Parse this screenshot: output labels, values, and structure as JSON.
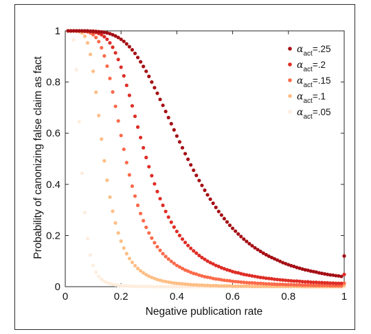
{
  "chart_data": {
    "type": "scatter",
    "title": "",
    "xlabel": "Negative publication rate",
    "ylabel": "Probability of canonizing false claim as fact",
    "xlim": [
      0,
      1
    ],
    "ylim": [
      0,
      1
    ],
    "xticks": [
      "0",
      "0.2",
      "0.4",
      "0.6",
      "0.8",
      "1"
    ],
    "yticks": [
      "0",
      "0.2",
      "0.4",
      "0.6",
      "0.8",
      "1"
    ],
    "legend_position": "top-right",
    "grid": false,
    "x": [
      0.01,
      0.02,
      0.03,
      0.04,
      0.05,
      0.06,
      0.07,
      0.08,
      0.09,
      0.1,
      0.11,
      0.12,
      0.13,
      0.14,
      0.15,
      0.16,
      0.17,
      0.18,
      0.19,
      0.2,
      0.21,
      0.22,
      0.23,
      0.24,
      0.25,
      0.26,
      0.27,
      0.28,
      0.29,
      0.3,
      0.31,
      0.32,
      0.33,
      0.34,
      0.35,
      0.36,
      0.37,
      0.38,
      0.39,
      0.4,
      0.41,
      0.42,
      0.43,
      0.44,
      0.45,
      0.46,
      0.47,
      0.48,
      0.49,
      0.5,
      0.51,
      0.52,
      0.53,
      0.54,
      0.55,
      0.56,
      0.57,
      0.58,
      0.59,
      0.6,
      0.61,
      0.62,
      0.63,
      0.64,
      0.65,
      0.66,
      0.67,
      0.68,
      0.69,
      0.7,
      0.71,
      0.72,
      0.73,
      0.74,
      0.75,
      0.76,
      0.77,
      0.78,
      0.79,
      0.8,
      0.81,
      0.82,
      0.83,
      0.84,
      0.85,
      0.86,
      0.87,
      0.88,
      0.89,
      0.9,
      0.91,
      0.92,
      0.93,
      0.94,
      0.95,
      0.96,
      0.97,
      0.98,
      0.99,
      1.0
    ],
    "series": [
      {
        "label_main": "α",
        "label_sub": "act",
        "label_value": "=.25",
        "color": "#a50f15",
        "values": [
          1.0,
          1.0,
          1.0,
          1.0,
          1.0,
          1.0,
          1.0,
          1.0,
          0.999,
          0.999,
          0.998,
          0.997,
          0.996,
          0.994,
          0.992,
          0.989,
          0.985,
          0.98,
          0.974,
          0.967,
          0.959,
          0.949,
          0.938,
          0.926,
          0.912,
          0.896,
          0.879,
          0.861,
          0.842,
          0.822,
          0.8,
          0.778,
          0.756,
          0.732,
          0.709,
          0.685,
          0.661,
          0.637,
          0.613,
          0.589,
          0.566,
          0.543,
          0.52,
          0.498,
          0.476,
          0.455,
          0.435,
          0.415,
          0.396,
          0.377,
          0.359,
          0.342,
          0.326,
          0.31,
          0.294,
          0.28,
          0.266,
          0.253,
          0.24,
          0.228,
          0.217,
          0.206,
          0.196,
          0.186,
          0.177,
          0.168,
          0.16,
          0.152,
          0.145,
          0.138,
          0.131,
          0.125,
          0.119,
          0.114,
          0.109,
          0.104,
          0.099,
          0.094,
          0.09,
          0.086,
          0.082,
          0.079,
          0.075,
          0.072,
          0.069,
          0.066,
          0.064,
          0.061,
          0.059,
          0.057,
          0.054,
          0.052,
          0.05,
          0.048,
          0.046,
          0.045,
          0.043,
          0.042,
          0.04,
          0.12
        ]
      },
      {
        "label_main": "α",
        "label_sub": "act",
        "label_value": "=.2",
        "color": "#de2d26",
        "values": [
          1.0,
          1.0,
          1.0,
          1.0,
          1.0,
          1.0,
          0.999,
          0.999,
          0.998,
          0.996,
          0.994,
          0.99,
          0.985,
          0.977,
          0.967,
          0.953,
          0.936,
          0.914,
          0.888,
          0.858,
          0.824,
          0.787,
          0.748,
          0.707,
          0.666,
          0.624,
          0.583,
          0.543,
          0.505,
          0.469,
          0.434,
          0.402,
          0.372,
          0.344,
          0.318,
          0.294,
          0.272,
          0.252,
          0.233,
          0.216,
          0.2,
          0.186,
          0.173,
          0.161,
          0.15,
          0.14,
          0.131,
          0.122,
          0.114,
          0.107,
          0.1,
          0.094,
          0.089,
          0.083,
          0.079,
          0.074,
          0.07,
          0.066,
          0.063,
          0.059,
          0.056,
          0.054,
          0.051,
          0.048,
          0.046,
          0.044,
          0.042,
          0.04,
          0.038,
          0.036,
          0.035,
          0.033,
          0.032,
          0.031,
          0.029,
          0.028,
          0.027,
          0.026,
          0.025,
          0.024,
          0.023,
          0.022,
          0.022,
          0.021,
          0.02,
          0.019,
          0.019,
          0.018,
          0.017,
          0.017,
          0.016,
          0.016,
          0.015,
          0.015,
          0.014,
          0.014,
          0.013,
          0.013,
          0.013,
          0.048
        ]
      },
      {
        "label_main": "α",
        "label_sub": "act",
        "label_value": "=.15",
        "color": "#fb6a4a",
        "values": [
          1.0,
          1.0,
          1.0,
          1.0,
          1.0,
          0.999,
          0.998,
          0.996,
          0.992,
          0.985,
          0.974,
          0.958,
          0.934,
          0.902,
          0.862,
          0.814,
          0.761,
          0.705,
          0.648,
          0.591,
          0.537,
          0.485,
          0.437,
          0.393,
          0.354,
          0.318,
          0.286,
          0.258,
          0.232,
          0.21,
          0.19,
          0.172,
          0.156,
          0.142,
          0.129,
          0.118,
          0.108,
          0.099,
          0.091,
          0.083,
          0.077,
          0.071,
          0.065,
          0.061,
          0.056,
          0.052,
          0.049,
          0.045,
          0.042,
          0.039,
          0.037,
          0.035,
          0.032,
          0.03,
          0.029,
          0.027,
          0.025,
          0.024,
          0.023,
          0.021,
          0.02,
          0.019,
          0.018,
          0.017,
          0.016,
          0.015,
          0.015,
          0.014,
          0.013,
          0.013,
          0.012,
          0.011,
          0.011,
          0.01,
          0.01,
          0.009,
          0.009,
          0.009,
          0.008,
          0.008,
          0.008,
          0.007,
          0.007,
          0.007,
          0.006,
          0.006,
          0.006,
          0.006,
          0.005,
          0.005,
          0.005,
          0.005,
          0.005,
          0.005,
          0.004,
          0.004,
          0.004,
          0.004,
          0.004,
          0.014
        ]
      },
      {
        "label_main": "α",
        "label_sub": "act",
        "label_value": "=.1",
        "color": "#fdbe85",
        "values": [
          1.0,
          1.0,
          1.0,
          0.999,
          0.997,
          0.992,
          0.979,
          0.953,
          0.908,
          0.842,
          0.76,
          0.669,
          0.577,
          0.492,
          0.416,
          0.35,
          0.295,
          0.249,
          0.21,
          0.178,
          0.151,
          0.129,
          0.11,
          0.095,
          0.082,
          0.071,
          0.062,
          0.054,
          0.047,
          0.041,
          0.036,
          0.032,
          0.028,
          0.025,
          0.022,
          0.02,
          0.018,
          0.016,
          0.014,
          0.013,
          0.012,
          0.011,
          0.01,
          0.009,
          0.008,
          0.007,
          0.007,
          0.006,
          0.006,
          0.005,
          0.005,
          0.004,
          0.004,
          0.004,
          0.003,
          0.003,
          0.003,
          0.003,
          0.003,
          0.002,
          0.002,
          0.002,
          0.002,
          0.002,
          0.002,
          0.002,
          0.001,
          0.001,
          0.001,
          0.001,
          0.001,
          0.001,
          0.001,
          0.001,
          0.001,
          0.001,
          0.001,
          0.001,
          0.001,
          0.001,
          0.001,
          0.001,
          0.001,
          0.001,
          0.0,
          0.0,
          0.0,
          0.0,
          0.0,
          0.0,
          0.0,
          0.0,
          0.0,
          0.0,
          0.0,
          0.0,
          0.0,
          0.0,
          0.0,
          0.005
        ]
      },
      {
        "label_main": "α",
        "label_sub": "act",
        "label_value": "=.05",
        "color": "#feedde",
        "values": [
          1.0,
          0.997,
          0.965,
          0.848,
          0.645,
          0.443,
          0.29,
          0.188,
          0.124,
          0.083,
          0.057,
          0.04,
          0.029,
          0.021,
          0.016,
          0.012,
          0.009,
          0.007,
          0.005,
          0.004,
          0.003,
          0.003,
          0.002,
          0.002,
          0.001,
          0.001,
          0.001,
          0.001,
          0.001,
          0.001,
          0.0,
          0.0,
          0.0,
          0.0,
          0.0,
          0.0,
          0.0,
          0.0,
          0.0,
          0.0,
          0.0,
          0.0,
          0.0,
          0.0,
          0.0,
          0.0,
          0.0,
          0.0,
          0.0,
          0.0,
          0.0,
          0.0,
          0.0,
          0.0,
          0.0,
          0.0,
          0.0,
          0.0,
          0.0,
          0.0,
          0.0,
          0.0,
          0.0,
          0.0,
          0.0,
          0.0,
          0.0,
          0.0,
          0.0,
          0.0,
          0.0,
          0.0,
          0.0,
          0.0,
          0.0,
          0.0,
          0.0,
          0.0,
          0.0,
          0.0,
          0.0,
          0.0,
          0.0,
          0.0,
          0.0,
          0.0,
          0.0,
          0.0,
          0.0,
          0.0,
          0.0,
          0.0,
          0.0,
          0.0,
          0.0,
          0.0,
          0.0,
          0.0,
          0.0,
          0.001
        ]
      }
    ]
  }
}
